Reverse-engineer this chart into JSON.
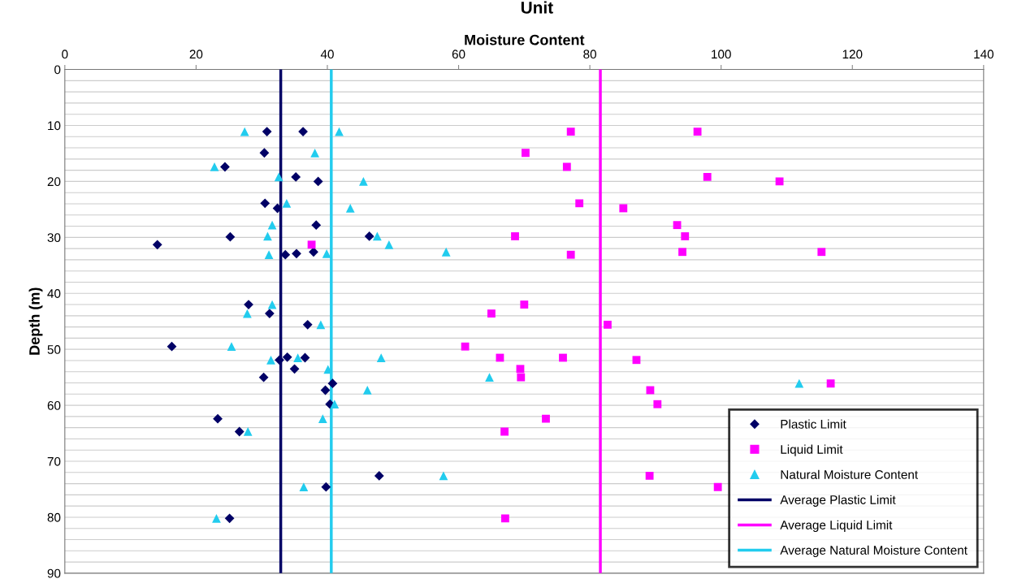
{
  "chart_data": {
    "type": "scatter",
    "title": "Unit",
    "xlabel": "Moisture Content",
    "ylabel": "Depth (m)",
    "xlim": [
      0,
      140
    ],
    "xticks": [
      0,
      20,
      40,
      60,
      80,
      100,
      120,
      140
    ],
    "ylim": [
      90,
      0
    ],
    "yticks": [
      0,
      {
        "value": 2,
        "label": null
      },
      {
        "value": 4,
        "label": null
      },
      {
        "value": 6,
        "label": null
      },
      {
        "value": 8,
        "label": null
      },
      10,
      {
        "value": 12,
        "label": null
      },
      {
        "value": 14,
        "label": null
      },
      {
        "value": 16,
        "label": null
      },
      {
        "value": 18,
        "label": null
      },
      20,
      {
        "value": 22,
        "label": null
      },
      {
        "value": 24,
        "label": null
      },
      {
        "value": 26,
        "label": null
      },
      {
        "value": 28,
        "label": null
      },
      30,
      {
        "value": 32,
        "label": null
      },
      {
        "value": 34,
        "label": null
      },
      {
        "value": 36,
        "label": null
      },
      {
        "value": 38,
        "label": null
      },
      40,
      {
        "value": 42,
        "label": null
      },
      {
        "value": 44,
        "label": null
      },
      {
        "value": 46,
        "label": null
      },
      {
        "value": 48,
        "label": null
      },
      50,
      {
        "value": 52,
        "label": null
      },
      {
        "value": 54,
        "label": null
      },
      {
        "value": 56,
        "label": null
      },
      {
        "value": 58,
        "label": null
      },
      60,
      {
        "value": 62,
        "label": null
      },
      {
        "value": 64,
        "label": null
      },
      {
        "value": 66,
        "label": null
      },
      {
        "value": 68,
        "label": null
      },
      70,
      {
        "value": 72,
        "label": null
      },
      {
        "value": 74,
        "label": null
      },
      {
        "value": 76,
        "label": null
      },
      {
        "value": 78,
        "label": null
      },
      80,
      {
        "value": 82,
        "label": null
      },
      {
        "value": 84,
        "label": null
      },
      {
        "value": 86,
        "label": null
      },
      {
        "value": 88,
        "label": null
      },
      90
    ],
    "grid": "y",
    "legend": "bottom right",
    "series": [
      {
        "name": "Plastic Limit",
        "color": "#000066",
        "marker": "diamond",
        "x": [
          30.8,
          36.3,
          30.4,
          24.4,
          35.2,
          38.6,
          30.5,
          32.4,
          38.3,
          25.2,
          46.4,
          14.1,
          33.6,
          35.3,
          37.9,
          28.0,
          31.2,
          37.0,
          16.3,
          32.7,
          33.9,
          36.6,
          35.0,
          30.3,
          40.8,
          39.7,
          40.4,
          23.3,
          26.6,
          47.9,
          39.8,
          25.1
        ],
        "values": [
          11.1,
          11.1,
          14.9,
          17.4,
          19.2,
          20.0,
          23.9,
          24.8,
          27.8,
          29.9,
          29.8,
          31.3,
          33.1,
          32.9,
          32.6,
          42.0,
          43.6,
          45.6,
          49.5,
          51.9,
          51.4,
          51.5,
          53.5,
          55.0,
          56.1,
          57.3,
          59.8,
          62.4,
          64.7,
          72.6,
          74.6,
          80.2
        ]
      },
      {
        "name": "Liquid Limit",
        "color": "#ff00ff",
        "marker": "square",
        "x": [
          77.1,
          96.4,
          70.2,
          76.5,
          97.9,
          108.9,
          78.4,
          85.1,
          93.3,
          68.6,
          94.5,
          37.6,
          77.1,
          94.1,
          115.3,
          70.0,
          65.0,
          82.7,
          61.0,
          66.3,
          75.9,
          87.1,
          69.4,
          69.5,
          116.7,
          89.2,
          90.3,
          73.3,
          67.0,
          89.1,
          99.5,
          67.1
        ],
        "values": [
          11.1,
          11.1,
          14.9,
          17.4,
          19.2,
          20.0,
          23.9,
          24.8,
          27.8,
          29.8,
          29.8,
          31.3,
          33.1,
          32.6,
          32.6,
          42.0,
          43.6,
          45.6,
          49.5,
          51.5,
          51.5,
          51.9,
          53.5,
          55.0,
          56.1,
          57.3,
          59.8,
          62.4,
          64.7,
          72.6,
          74.6,
          80.2
        ]
      },
      {
        "name": "Natural Moisture Content",
        "color": "#22ccee",
        "marker": "triangle",
        "x": [
          27.4,
          41.8,
          38.1,
          22.8,
          32.6,
          45.5,
          33.8,
          43.5,
          31.6,
          30.9,
          47.6,
          49.4,
          58.1,
          31.1,
          39.9,
          31.6,
          27.8,
          39.0,
          25.4,
          31.4,
          35.5,
          48.2,
          40.1,
          64.7,
          111.9,
          46.1,
          41.1,
          39.3,
          27.9,
          57.7,
          36.4,
          23.1
        ],
        "values": [
          11.1,
          11.1,
          14.9,
          17.4,
          19.2,
          20.0,
          23.9,
          24.8,
          27.8,
          29.8,
          29.8,
          31.3,
          32.6,
          33.1,
          32.9,
          42.0,
          43.6,
          45.6,
          49.5,
          51.9,
          51.5,
          51.5,
          53.6,
          55.0,
          56.1,
          57.3,
          59.8,
          62.4,
          64.7,
          72.6,
          74.6,
          80.2
        ]
      },
      {
        "name": "Average Plastic Limit",
        "type": "line",
        "color": "#000066",
        "marker": "none",
        "x": [
          32.9,
          32.9
        ],
        "values": [
          0,
          90
        ]
      },
      {
        "name": "Average Liquid Limit",
        "type": "line",
        "color": "#ff00ff",
        "marker": "none",
        "x": [
          81.6,
          81.6
        ],
        "values": [
          0,
          90
        ]
      },
      {
        "name": "Average Natural Moisture Content",
        "type": "line",
        "color": "#22ccee",
        "marker": "none",
        "x": [
          40.6,
          40.6
        ],
        "values": [
          0,
          90
        ]
      }
    ]
  }
}
